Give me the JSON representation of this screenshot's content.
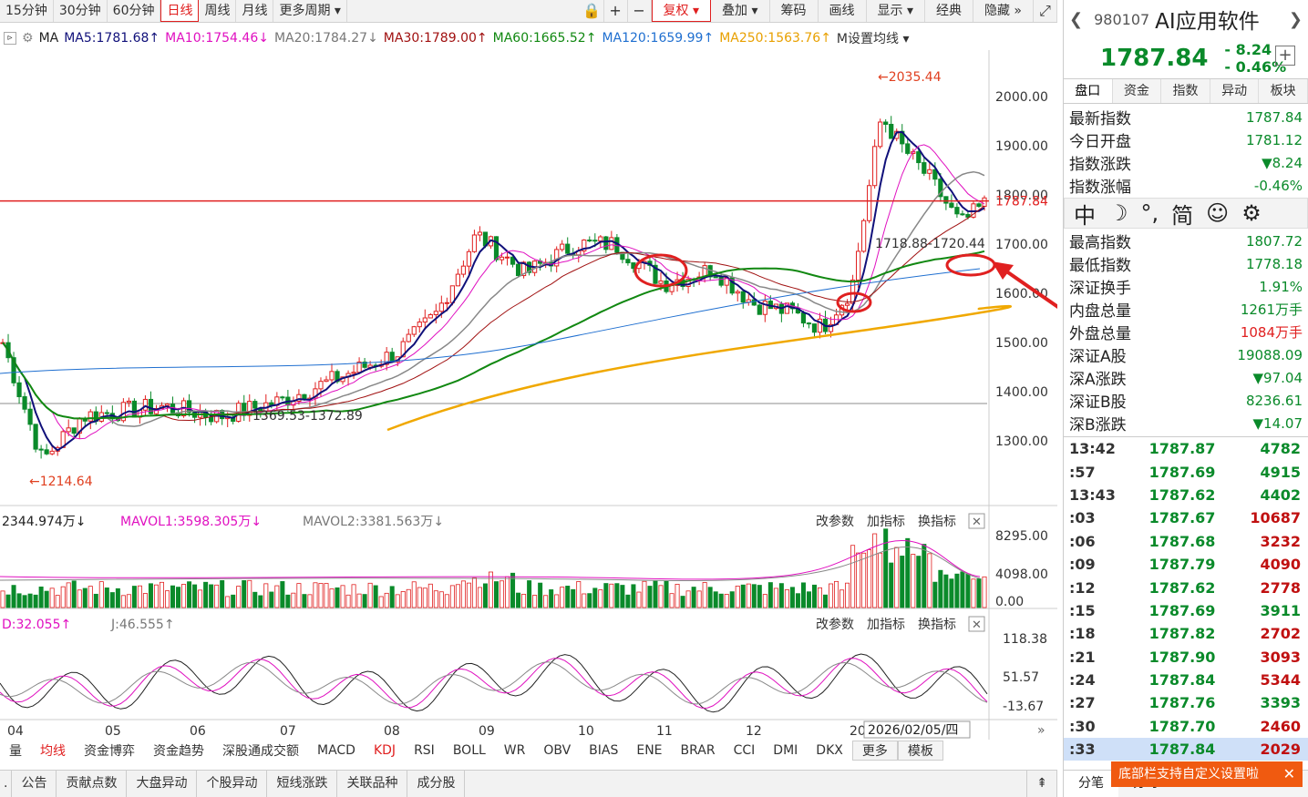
{
  "toolbar": {
    "periods": [
      "15分钟",
      "30分钟",
      "60分钟",
      "日线",
      "周线",
      "月线",
      "更多周期 ▾"
    ],
    "active": "日线",
    "right": [
      "复权 ▾",
      "叠加 ▾",
      "筹码",
      "画线",
      "显示 ▾",
      "经典",
      "隐藏 »"
    ]
  },
  "ma_bar": {
    "label": "MA",
    "items": [
      {
        "text": "MA5:1781.68",
        "color": "#10107a",
        "arrow": "↑"
      },
      {
        "text": "MA10:1754.46",
        "color": "#e010c0",
        "arrow": "↓"
      },
      {
        "text": "MA20:1784.27",
        "color": "#777777",
        "arrow": "↓"
      },
      {
        "text": "MA30:1789.00",
        "color": "#a01010",
        "arrow": "↑"
      },
      {
        "text": "MA60:1665.52",
        "color": "#118811",
        "arrow": "↑"
      },
      {
        "text": "MA120:1659.99",
        "color": "#1f6fd0",
        "arrow": "↑"
      },
      {
        "text": "MA250:1563.76",
        "color": "#e8a000",
        "arrow": "↑"
      },
      {
        "text": "M设置均线 ▾",
        "color": "#333333",
        "arrow": ""
      }
    ]
  },
  "price_axis": [
    "2000.00",
    "1900.00",
    "1800.00",
    "1700.00",
    "1600.00",
    "1500.00",
    "1400.00",
    "1300.00"
  ],
  "current_price_tag": "1787.84",
  "annotations": {
    "high": "←2035.44",
    "low": "←1214.64",
    "range1": "1369.53-1372.89",
    "range2": "1718.88-1720.44"
  },
  "vol_bar": {
    "items": [
      "2344.974万↓",
      "MAVOL1:3598.305万↓",
      "MAVOL2:3381.563万↓"
    ],
    "actions": [
      "改参数",
      "加指标",
      "换指标"
    ],
    "axis": [
      "8295.00",
      "4098.00",
      "0.00"
    ]
  },
  "kdj_bar": {
    "items": [
      "D:32.055↑",
      "J:46.555↑"
    ],
    "actions": [
      "改参数",
      "加指标",
      "换指标"
    ],
    "axis": [
      "118.38",
      "51.57",
      "-13.67"
    ]
  },
  "months": [
    "04",
    "05",
    "06",
    "07",
    "08",
    "09",
    "10",
    "11",
    "12",
    "20"
  ],
  "cursor_date": "2026/02/05/四",
  "indicators": [
    "量",
    "均线",
    "资金博弈",
    "资金趋势",
    "深股通成交额",
    "MACD",
    "KDJ",
    "RSI",
    "BOLL",
    "WR",
    "OBV",
    "BIAS",
    "ENE",
    "BRAR",
    "CCI",
    "DMI",
    "DKX",
    "更多",
    "模板"
  ],
  "bottom_tabs": [
    "公告",
    "贡献点数",
    "大盘异动",
    "个股异动",
    "短线涨跌",
    "关联品种",
    "成分股"
  ],
  "right": {
    "code": "980107",
    "name": "AI应用软件",
    "price": "1787.84",
    "change": "- 8.24",
    "pct": "- 0.46%",
    "tabs": [
      "盘口",
      "资金",
      "指数",
      "异动",
      "板块"
    ],
    "rows1": [
      [
        "最新指数",
        "1787.84"
      ],
      [
        "今日开盘",
        "1781.12"
      ],
      [
        "指数涨跌",
        "▼8.24"
      ],
      [
        "指数涨幅",
        "-0.46%"
      ]
    ],
    "toolicons": [
      "中",
      "☽",
      "°,",
      "简",
      "☺",
      "⚙"
    ],
    "rows2": [
      [
        "最高指数",
        "1807.72"
      ],
      [
        "最低指数",
        "1778.18"
      ],
      [
        "深证换手",
        "1.91%"
      ],
      [
        "内盘总量",
        "1261万手"
      ],
      [
        "外盘总量",
        "1084万手"
      ],
      [
        "深证A股",
        "19088.09"
      ],
      [
        "深A涨跌",
        "▼97.04"
      ],
      [
        "深证B股",
        "8236.61"
      ],
      [
        "深B涨跌",
        "▼14.07"
      ]
    ],
    "ticks": [
      [
        "13:42",
        "1787.87",
        "4782"
      ],
      [
        ":57",
        "1787.69",
        "4915"
      ],
      [
        "13:43",
        "1787.62",
        "4402"
      ],
      [
        ":03",
        "1787.67",
        "10687"
      ],
      [
        ":06",
        "1787.68",
        "3232"
      ],
      [
        ":09",
        "1787.79",
        "4090"
      ],
      [
        ":12",
        "1787.62",
        "2778"
      ],
      [
        ":15",
        "1787.69",
        "3911"
      ],
      [
        ":18",
        "1787.82",
        "2702"
      ],
      [
        ":21",
        "1787.90",
        "3093"
      ],
      [
        ":24",
        "1787.84",
        "5344"
      ],
      [
        ":27",
        "1787.76",
        "3393"
      ],
      [
        ":30",
        "1787.70",
        "2460"
      ],
      [
        ":33",
        "1787.84",
        "2029"
      ]
    ],
    "bottom": [
      "分笔",
      "分时"
    ],
    "toast": "底部栏支持自定义设置啦"
  }
}
